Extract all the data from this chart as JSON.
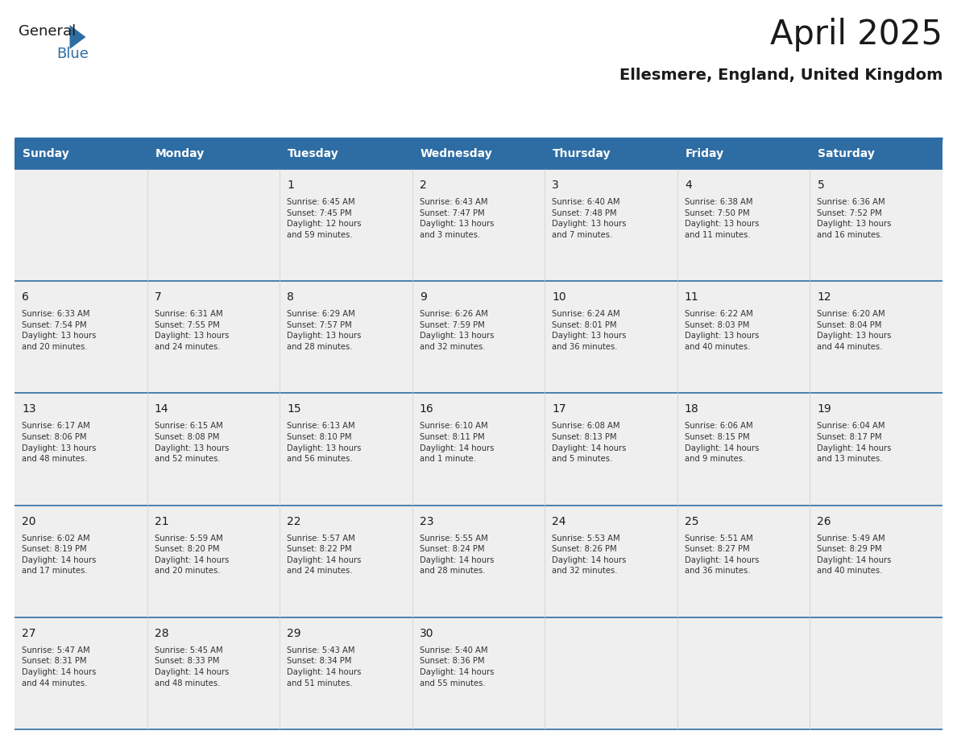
{
  "title": "April 2025",
  "subtitle": "Ellesmere, England, United Kingdom",
  "header_bg": "#2E6DA4",
  "header_text_color": "#FFFFFF",
  "cell_bg": "#EFEFEF",
  "day_number_color": "#1a1a1a",
  "day_data_color": "#333333",
  "grid_line_color": "#2E6DA4",
  "days_of_week": [
    "Sunday",
    "Monday",
    "Tuesday",
    "Wednesday",
    "Thursday",
    "Friday",
    "Saturday"
  ],
  "calendar": [
    [
      {
        "day": "",
        "data": ""
      },
      {
        "day": "",
        "data": ""
      },
      {
        "day": "1",
        "data": "Sunrise: 6:45 AM\nSunset: 7:45 PM\nDaylight: 12 hours\nand 59 minutes."
      },
      {
        "day": "2",
        "data": "Sunrise: 6:43 AM\nSunset: 7:47 PM\nDaylight: 13 hours\nand 3 minutes."
      },
      {
        "day": "3",
        "data": "Sunrise: 6:40 AM\nSunset: 7:48 PM\nDaylight: 13 hours\nand 7 minutes."
      },
      {
        "day": "4",
        "data": "Sunrise: 6:38 AM\nSunset: 7:50 PM\nDaylight: 13 hours\nand 11 minutes."
      },
      {
        "day": "5",
        "data": "Sunrise: 6:36 AM\nSunset: 7:52 PM\nDaylight: 13 hours\nand 16 minutes."
      }
    ],
    [
      {
        "day": "6",
        "data": "Sunrise: 6:33 AM\nSunset: 7:54 PM\nDaylight: 13 hours\nand 20 minutes."
      },
      {
        "day": "7",
        "data": "Sunrise: 6:31 AM\nSunset: 7:55 PM\nDaylight: 13 hours\nand 24 minutes."
      },
      {
        "day": "8",
        "data": "Sunrise: 6:29 AM\nSunset: 7:57 PM\nDaylight: 13 hours\nand 28 minutes."
      },
      {
        "day": "9",
        "data": "Sunrise: 6:26 AM\nSunset: 7:59 PM\nDaylight: 13 hours\nand 32 minutes."
      },
      {
        "day": "10",
        "data": "Sunrise: 6:24 AM\nSunset: 8:01 PM\nDaylight: 13 hours\nand 36 minutes."
      },
      {
        "day": "11",
        "data": "Sunrise: 6:22 AM\nSunset: 8:03 PM\nDaylight: 13 hours\nand 40 minutes."
      },
      {
        "day": "12",
        "data": "Sunrise: 6:20 AM\nSunset: 8:04 PM\nDaylight: 13 hours\nand 44 minutes."
      }
    ],
    [
      {
        "day": "13",
        "data": "Sunrise: 6:17 AM\nSunset: 8:06 PM\nDaylight: 13 hours\nand 48 minutes."
      },
      {
        "day": "14",
        "data": "Sunrise: 6:15 AM\nSunset: 8:08 PM\nDaylight: 13 hours\nand 52 minutes."
      },
      {
        "day": "15",
        "data": "Sunrise: 6:13 AM\nSunset: 8:10 PM\nDaylight: 13 hours\nand 56 minutes."
      },
      {
        "day": "16",
        "data": "Sunrise: 6:10 AM\nSunset: 8:11 PM\nDaylight: 14 hours\nand 1 minute."
      },
      {
        "day": "17",
        "data": "Sunrise: 6:08 AM\nSunset: 8:13 PM\nDaylight: 14 hours\nand 5 minutes."
      },
      {
        "day": "18",
        "data": "Sunrise: 6:06 AM\nSunset: 8:15 PM\nDaylight: 14 hours\nand 9 minutes."
      },
      {
        "day": "19",
        "data": "Sunrise: 6:04 AM\nSunset: 8:17 PM\nDaylight: 14 hours\nand 13 minutes."
      }
    ],
    [
      {
        "day": "20",
        "data": "Sunrise: 6:02 AM\nSunset: 8:19 PM\nDaylight: 14 hours\nand 17 minutes."
      },
      {
        "day": "21",
        "data": "Sunrise: 5:59 AM\nSunset: 8:20 PM\nDaylight: 14 hours\nand 20 minutes."
      },
      {
        "day": "22",
        "data": "Sunrise: 5:57 AM\nSunset: 8:22 PM\nDaylight: 14 hours\nand 24 minutes."
      },
      {
        "day": "23",
        "data": "Sunrise: 5:55 AM\nSunset: 8:24 PM\nDaylight: 14 hours\nand 28 minutes."
      },
      {
        "day": "24",
        "data": "Sunrise: 5:53 AM\nSunset: 8:26 PM\nDaylight: 14 hours\nand 32 minutes."
      },
      {
        "day": "25",
        "data": "Sunrise: 5:51 AM\nSunset: 8:27 PM\nDaylight: 14 hours\nand 36 minutes."
      },
      {
        "day": "26",
        "data": "Sunrise: 5:49 AM\nSunset: 8:29 PM\nDaylight: 14 hours\nand 40 minutes."
      }
    ],
    [
      {
        "day": "27",
        "data": "Sunrise: 5:47 AM\nSunset: 8:31 PM\nDaylight: 14 hours\nand 44 minutes."
      },
      {
        "day": "28",
        "data": "Sunrise: 5:45 AM\nSunset: 8:33 PM\nDaylight: 14 hours\nand 48 minutes."
      },
      {
        "day": "29",
        "data": "Sunrise: 5:43 AM\nSunset: 8:34 PM\nDaylight: 14 hours\nand 51 minutes."
      },
      {
        "day": "30",
        "data": "Sunrise: 5:40 AM\nSunset: 8:36 PM\nDaylight: 14 hours\nand 55 minutes."
      },
      {
        "day": "",
        "data": ""
      },
      {
        "day": "",
        "data": ""
      },
      {
        "day": "",
        "data": ""
      }
    ]
  ],
  "logo_text1": "General",
  "logo_text2": "Blue",
  "logo_color1": "#1a1a1a",
  "logo_color2": "#2E6DA4",
  "logo_triangle_color": "#2E6DA4",
  "fig_width": 11.88,
  "fig_height": 9.18,
  "dpi": 100
}
